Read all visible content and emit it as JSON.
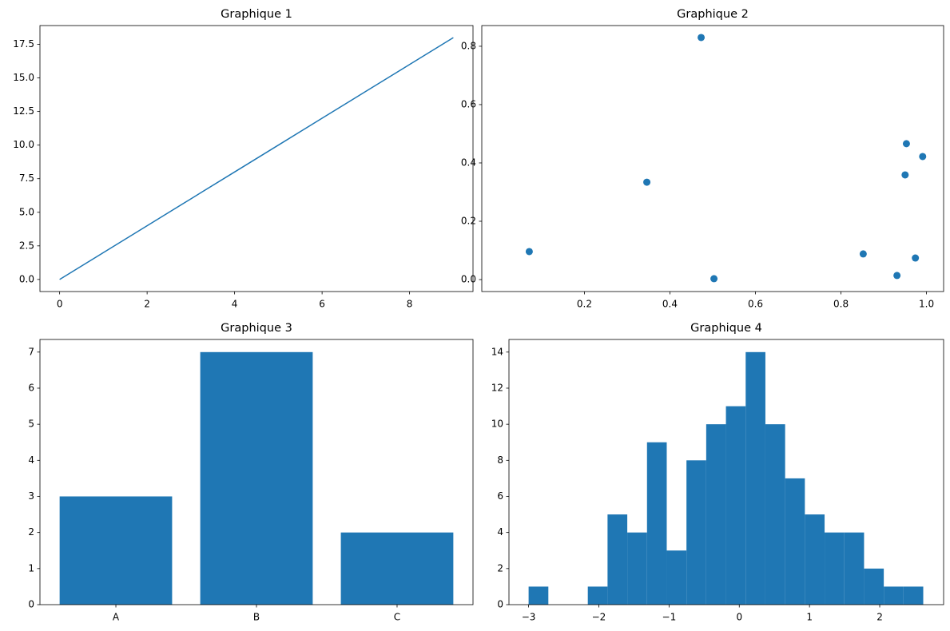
{
  "chart_data": [
    {
      "type": "line",
      "title": "Graphique 1",
      "color": "#1f77b4",
      "x": [
        0,
        1,
        2,
        3,
        4,
        5,
        6,
        7,
        8,
        9
      ],
      "values": [
        0,
        2,
        4,
        6,
        8,
        10,
        12,
        14,
        16,
        18
      ],
      "xlim": [
        -0.45,
        9.45
      ],
      "ylim": [
        -0.9,
        18.9
      ],
      "xticks": [
        0,
        2,
        4,
        6,
        8
      ],
      "yticks": [
        {
          "value": 0,
          "label": "0.0"
        },
        2.5,
        {
          "value": 5,
          "label": "5.0"
        },
        7.5,
        {
          "value": 10,
          "label": "10.0"
        },
        12.5,
        {
          "value": 15,
          "label": "15.0"
        },
        17.5
      ]
    },
    {
      "type": "scatter",
      "title": "Graphique 2",
      "color": "#1f77b4",
      "x": [
        0.071,
        0.346,
        0.473,
        0.503,
        0.852,
        0.931,
        0.953,
        0.95,
        0.974,
        0.991
      ],
      "values": [
        0.096,
        0.334,
        0.83,
        0.003,
        0.088,
        0.014,
        0.466,
        0.359,
        0.074,
        0.422
      ],
      "xlim": [
        -0.04,
        1.04
      ],
      "ylim": [
        -0.041,
        0.871
      ],
      "xticks": [
        0.2,
        0.4,
        0.6,
        0.8,
        {
          "value": 1,
          "label": "1.0"
        }
      ],
      "yticks": [
        {
          "value": 0,
          "label": "0.0"
        },
        0.2,
        0.4,
        0.6,
        0.8
      ]
    },
    {
      "type": "bar",
      "title": "Graphique 3",
      "color": "#1f77b4",
      "categories": [
        "A",
        "B",
        "C"
      ],
      "values": [
        3,
        7,
        2
      ],
      "ylim": [
        0,
        7.35
      ],
      "yticks": [
        0,
        1,
        2,
        3,
        4,
        5,
        6,
        7
      ]
    },
    {
      "type": "histogram",
      "title": "Graphique 4",
      "color": "#1f77b4",
      "bins": [
        -3.0,
        -2.719,
        -2.438,
        -2.157,
        -1.876,
        -1.595,
        -1.314,
        -1.033,
        -0.752,
        -0.471,
        -0.19,
        0.091,
        0.372,
        0.653,
        0.934,
        1.215,
        1.496,
        1.777,
        2.058,
        2.339,
        2.62
      ],
      "values": [
        1,
        0,
        0,
        1,
        5,
        4,
        9,
        3,
        8,
        10,
        11,
        14,
        10,
        7,
        5,
        4,
        4,
        2,
        1,
        1
      ],
      "xlim": [
        -3.28,
        2.91
      ],
      "ylim": [
        0,
        14.7
      ],
      "xticks": [
        {
          "value": -3,
          "label": "−3"
        },
        {
          "value": -2,
          "label": "−2"
        },
        {
          "value": -1,
          "label": "−1"
        },
        0,
        1,
        2
      ],
      "yticks": [
        0,
        2,
        4,
        6,
        8,
        10,
        12,
        14
      ]
    }
  ]
}
